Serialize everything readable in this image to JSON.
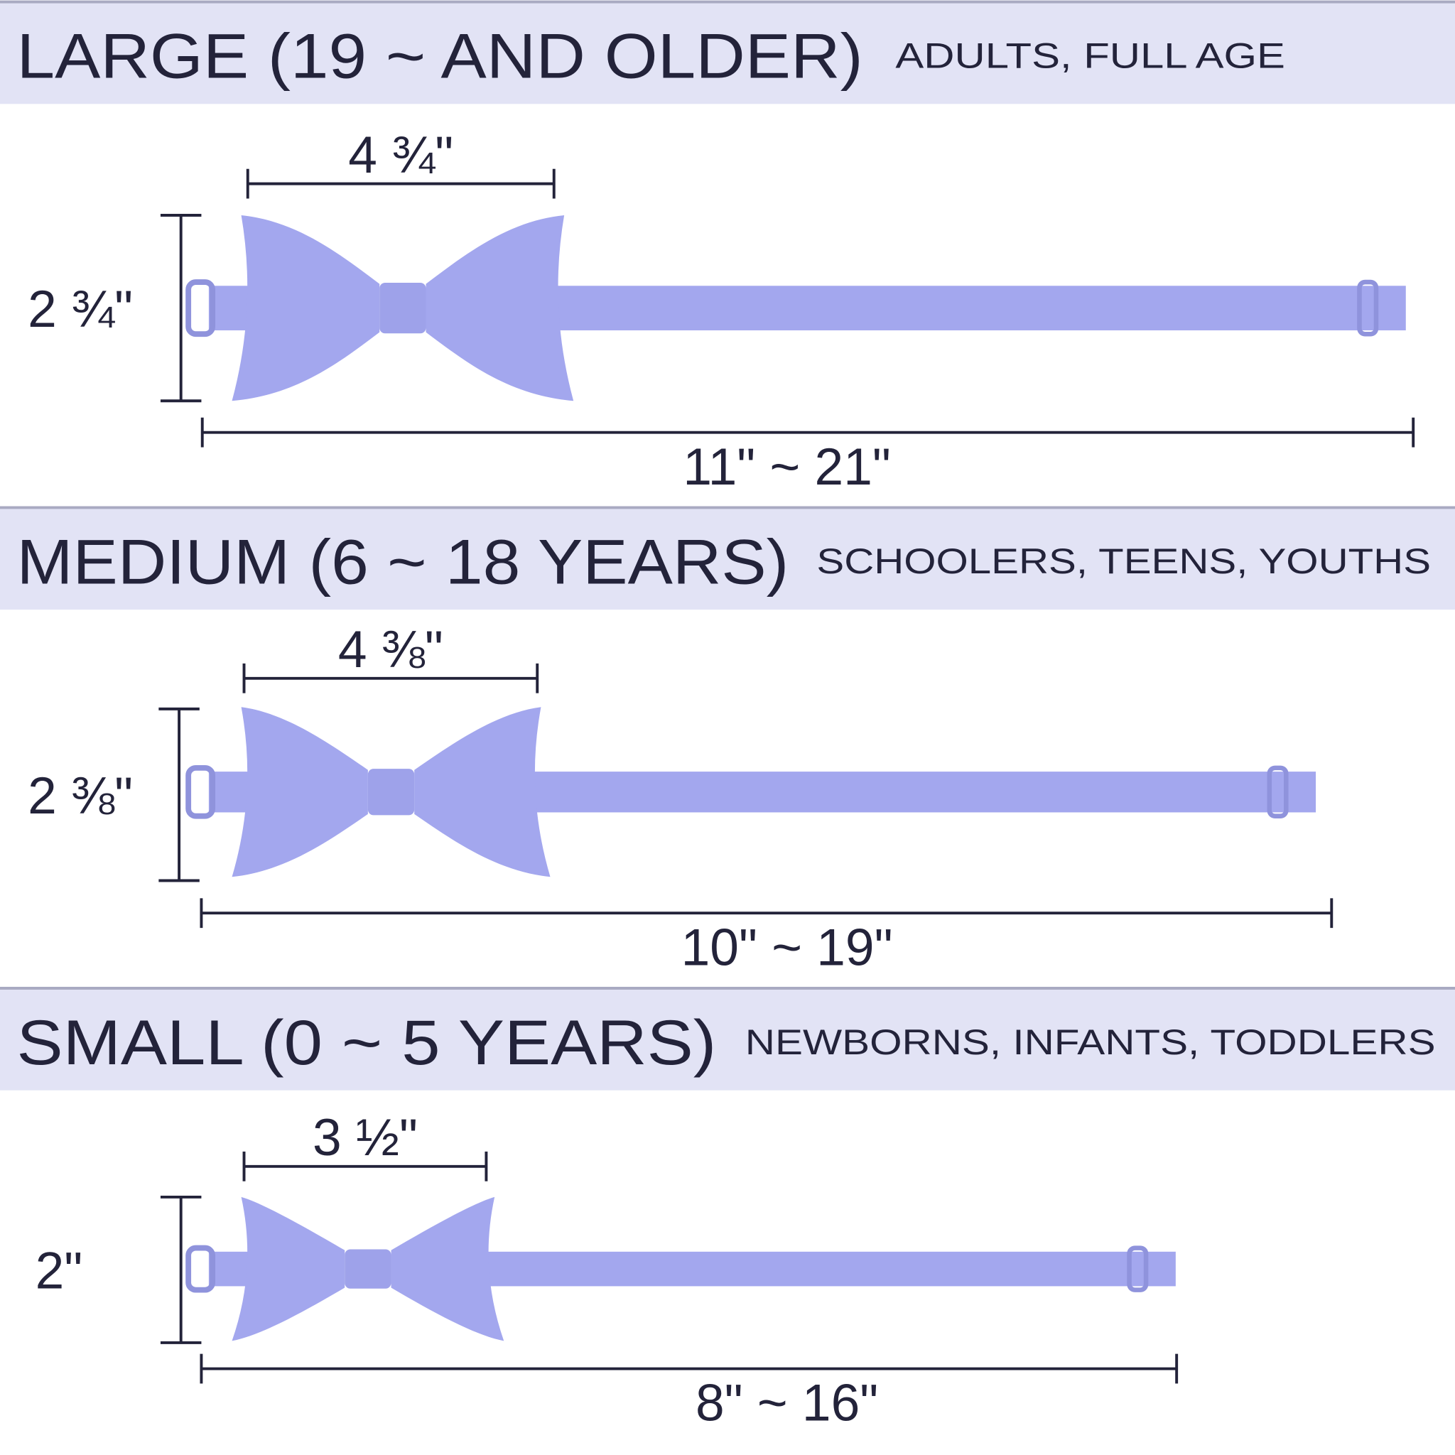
{
  "sections": [
    {
      "title": "LARGE (19 ~ AND OLDER)",
      "subtitle": "ADULTS, FULL AGE",
      "width": "4 ¾\"",
      "height": "2 ¾\"",
      "length": "11\" ~ 21\""
    },
    {
      "title": "MEDIUM (6 ~ 18 YEARS)",
      "subtitle": "SCHOOLERS, TEENS, YOUTHS",
      "width": "4 ⅜\"",
      "height": "2 ⅜\"",
      "length": "10\" ~ 19\""
    },
    {
      "title": "SMALL (0 ~ 5 YEARS)",
      "subtitle": "NEWBORNS, INFANTS, TODDLERS",
      "width": "3 ½\"",
      "height": "2\"",
      "length": "8\" ~ 16\""
    }
  ]
}
